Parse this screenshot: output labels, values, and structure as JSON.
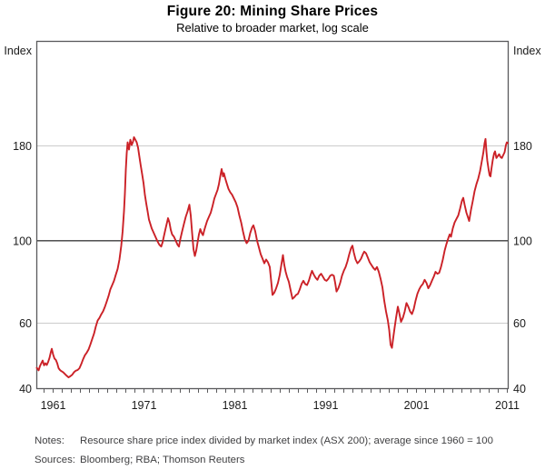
{
  "figure": {
    "title": "Figure 20: Mining Share Prices",
    "subtitle": "Relative to broader market, log scale"
  },
  "footer": {
    "notes_label": "Notes:",
    "notes_text": "Resource share price index divided by market index (ASX 200); average since 1960 = 100",
    "sources_label": "Sources:",
    "sources_text": "Bloomberg; RBA; Thomson Reuters"
  },
  "chart_data": {
    "type": "line",
    "title": "Figure 20: Mining Share Prices",
    "subtitle": "Relative to broader market, log scale",
    "y_unit": "Index",
    "yscale": "log",
    "ylim": [
      40,
      344
    ],
    "yticks": [
      180,
      100,
      60,
      40
    ],
    "baseline_value": 100,
    "xlim": [
      1959.2,
      2011.1
    ],
    "xticks_labeled": [
      "1961",
      "1971",
      "1981",
      "1991",
      "2001",
      "2011"
    ],
    "xtick_minor_start": 1960,
    "xtick_minor_end": 2011,
    "xtick_minor_step_years": 1,
    "grid": "horizontal",
    "legend": "none",
    "colors": {
      "line": "#cb2127",
      "grid": "#cccccc",
      "frame": "#5a5a5c",
      "baseline": "#3c3c3e",
      "tick_text": "#1a1a1a"
    },
    "series": [
      {
        "name": "Resource share prices relative to broader market (average since 1960 = 100)",
        "color": "#cb2127",
        "points": [
          [
            1959.2,
            45.5
          ],
          [
            1959.4,
            44.8
          ],
          [
            1959.55,
            46
          ],
          [
            1959.7,
            46.8
          ],
          [
            1959.85,
            47.6
          ],
          [
            1960,
            46.2
          ],
          [
            1960.15,
            46.8
          ],
          [
            1960.3,
            46.3
          ],
          [
            1960.45,
            47.2
          ],
          [
            1960.6,
            48.4
          ],
          [
            1960.75,
            50.2
          ],
          [
            1960.85,
            51.2
          ],
          [
            1961,
            49.4
          ],
          [
            1961.15,
            48.2
          ],
          [
            1961.3,
            47.8
          ],
          [
            1961.45,
            46.8
          ],
          [
            1961.6,
            45.4
          ],
          [
            1961.75,
            44.9
          ],
          [
            1961.9,
            44.6
          ],
          [
            1962.1,
            44.3
          ],
          [
            1962.3,
            43.8
          ],
          [
            1962.5,
            43.3
          ],
          [
            1962.7,
            42.9
          ],
          [
            1962.9,
            43.2
          ],
          [
            1963.1,
            43.6
          ],
          [
            1963.3,
            44.3
          ],
          [
            1963.5,
            44.7
          ],
          [
            1963.7,
            44.9
          ],
          [
            1963.9,
            45.4
          ],
          [
            1964.1,
            46.6
          ],
          [
            1964.3,
            48
          ],
          [
            1964.5,
            49.2
          ],
          [
            1964.7,
            50
          ],
          [
            1964.9,
            51
          ],
          [
            1965.1,
            52.6
          ],
          [
            1965.3,
            54.4
          ],
          [
            1965.5,
            56.2
          ],
          [
            1965.7,
            58.8
          ],
          [
            1965.9,
            61
          ],
          [
            1966.1,
            62
          ],
          [
            1966.3,
            63.4
          ],
          [
            1966.5,
            64.6
          ],
          [
            1966.7,
            66.4
          ],
          [
            1966.9,
            68.6
          ],
          [
            1967.1,
            71
          ],
          [
            1967.3,
            74
          ],
          [
            1967.5,
            76
          ],
          [
            1967.7,
            78
          ],
          [
            1967.9,
            81
          ],
          [
            1968.1,
            84
          ],
          [
            1968.3,
            89
          ],
          [
            1968.5,
            97
          ],
          [
            1968.65,
            106
          ],
          [
            1968.8,
            120
          ],
          [
            1968.9,
            134
          ],
          [
            1969,
            155
          ],
          [
            1969.1,
            172
          ],
          [
            1969.2,
            184
          ],
          [
            1969.35,
            176
          ],
          [
            1969.5,
            187
          ],
          [
            1969.65,
            181
          ],
          [
            1969.8,
            185
          ],
          [
            1969.9,
            190
          ],
          [
            1970.05,
            187
          ],
          [
            1970.2,
            184
          ],
          [
            1970.35,
            178
          ],
          [
            1970.5,
            168
          ],
          [
            1970.65,
            159
          ],
          [
            1970.8,
            151
          ],
          [
            1970.95,
            143
          ],
          [
            1971.1,
            133
          ],
          [
            1971.25,
            126
          ],
          [
            1971.4,
            120
          ],
          [
            1971.55,
            114
          ],
          [
            1971.7,
            111
          ],
          [
            1971.85,
            108
          ],
          [
            1972,
            106
          ],
          [
            1972.15,
            104
          ],
          [
            1972.3,
            102
          ],
          [
            1972.5,
            99.5
          ],
          [
            1972.7,
            97.5
          ],
          [
            1972.9,
            96.5
          ],
          [
            1973.05,
            99
          ],
          [
            1973.2,
            103
          ],
          [
            1973.35,
            107
          ],
          [
            1973.5,
            111
          ],
          [
            1973.65,
            115
          ],
          [
            1973.8,
            112
          ],
          [
            1973.95,
            107
          ],
          [
            1974.1,
            104
          ],
          [
            1974.3,
            102.5
          ],
          [
            1974.5,
            100
          ],
          [
            1974.7,
            97.5
          ],
          [
            1974.85,
            96.5
          ],
          [
            1975,
            101
          ],
          [
            1975.2,
            106
          ],
          [
            1975.4,
            111
          ],
          [
            1975.6,
            116
          ],
          [
            1975.8,
            120
          ],
          [
            1976,
            125
          ],
          [
            1976.15,
            117
          ],
          [
            1976.3,
            105
          ],
          [
            1976.45,
            95
          ],
          [
            1976.6,
            91
          ],
          [
            1976.75,
            94
          ],
          [
            1976.9,
            99
          ],
          [
            1977.05,
            104
          ],
          [
            1977.2,
            107.5
          ],
          [
            1977.35,
            105
          ],
          [
            1977.5,
            103.5
          ],
          [
            1977.65,
            107
          ],
          [
            1977.8,
            110
          ],
          [
            1977.95,
            113
          ],
          [
            1978.15,
            116
          ],
          [
            1978.35,
            119
          ],
          [
            1978.55,
            124
          ],
          [
            1978.75,
            130
          ],
          [
            1978.95,
            134
          ],
          [
            1979.1,
            137
          ],
          [
            1979.25,
            142
          ],
          [
            1979.4,
            149
          ],
          [
            1979.55,
            156
          ],
          [
            1979.7,
            149
          ],
          [
            1979.8,
            152
          ],
          [
            1979.95,
            147
          ],
          [
            1980.1,
            143
          ],
          [
            1980.3,
            138
          ],
          [
            1980.5,
            135
          ],
          [
            1980.7,
            133
          ],
          [
            1980.9,
            130
          ],
          [
            1981.1,
            127
          ],
          [
            1981.3,
            123
          ],
          [
            1981.5,
            117
          ],
          [
            1981.7,
            112
          ],
          [
            1981.9,
            106
          ],
          [
            1982.1,
            101
          ],
          [
            1982.3,
            98.5
          ],
          [
            1982.5,
            100
          ],
          [
            1982.7,
            105
          ],
          [
            1982.9,
            108.5
          ],
          [
            1983.05,
            110
          ],
          [
            1983.25,
            106
          ],
          [
            1983.45,
            100
          ],
          [
            1983.65,
            96
          ],
          [
            1983.85,
            92
          ],
          [
            1984.05,
            89.5
          ],
          [
            1984.25,
            87
          ],
          [
            1984.45,
            89
          ],
          [
            1984.65,
            87.5
          ],
          [
            1984.85,
            85
          ],
          [
            1985,
            78
          ],
          [
            1985.15,
            71.5
          ],
          [
            1985.35,
            72.5
          ],
          [
            1985.55,
            74.5
          ],
          [
            1985.75,
            77
          ],
          [
            1985.95,
            81
          ],
          [
            1986.15,
            87
          ],
          [
            1986.3,
            91.5
          ],
          [
            1986.45,
            86
          ],
          [
            1986.6,
            82.5
          ],
          [
            1986.75,
            80
          ],
          [
            1986.95,
            77.5
          ],
          [
            1987.15,
            73.5
          ],
          [
            1987.35,
            69.8
          ],
          [
            1987.55,
            70.5
          ],
          [
            1987.75,
            71.5
          ],
          [
            1987.95,
            72
          ],
          [
            1988.15,
            74
          ],
          [
            1988.35,
            76.5
          ],
          [
            1988.55,
            78
          ],
          [
            1988.75,
            76.5
          ],
          [
            1988.95,
            76
          ],
          [
            1989.15,
            78
          ],
          [
            1989.35,
            81
          ],
          [
            1989.5,
            83
          ],
          [
            1989.7,
            81
          ],
          [
            1989.9,
            79.5
          ],
          [
            1990.1,
            78.5
          ],
          [
            1990.3,
            80.5
          ],
          [
            1990.5,
            81.5
          ],
          [
            1990.7,
            80
          ],
          [
            1990.9,
            78.5
          ],
          [
            1991.1,
            78
          ],
          [
            1991.3,
            79
          ],
          [
            1991.5,
            80.5
          ],
          [
            1991.7,
            81
          ],
          [
            1991.9,
            80.5
          ],
          [
            1992.05,
            77
          ],
          [
            1992.2,
            73
          ],
          [
            1992.4,
            74.5
          ],
          [
            1992.6,
            77
          ],
          [
            1992.8,
            80.5
          ],
          [
            1993,
            83
          ],
          [
            1993.2,
            85
          ],
          [
            1993.4,
            88
          ],
          [
            1993.6,
            92
          ],
          [
            1993.8,
            95.5
          ],
          [
            1993.95,
            97
          ],
          [
            1994.1,
            93
          ],
          [
            1994.3,
            89
          ],
          [
            1994.5,
            87
          ],
          [
            1994.7,
            88
          ],
          [
            1994.9,
            89.5
          ],
          [
            1995.1,
            92
          ],
          [
            1995.25,
            93.5
          ],
          [
            1995.45,
            92.5
          ],
          [
            1995.65,
            90
          ],
          [
            1995.85,
            87.5
          ],
          [
            1996.05,
            86
          ],
          [
            1996.25,
            84.5
          ],
          [
            1996.45,
            83.5
          ],
          [
            1996.65,
            85
          ],
          [
            1996.85,
            82.5
          ],
          [
            1997.05,
            79
          ],
          [
            1997.25,
            75
          ],
          [
            1997.45,
            69
          ],
          [
            1997.65,
            64.5
          ],
          [
            1997.85,
            61
          ],
          [
            1998,
            57.5
          ],
          [
            1998.15,
            52.5
          ],
          [
            1998.3,
            51.5
          ],
          [
            1998.45,
            55
          ],
          [
            1998.6,
            58.5
          ],
          [
            1998.75,
            62
          ],
          [
            1998.95,
            66.5
          ],
          [
            1999.1,
            64
          ],
          [
            1999.3,
            60.5
          ],
          [
            1999.5,
            62
          ],
          [
            1999.7,
            64.5
          ],
          [
            1999.9,
            68
          ],
          [
            2000.1,
            66.5
          ],
          [
            2000.3,
            64.5
          ],
          [
            2000.5,
            63.5
          ],
          [
            2000.7,
            65.5
          ],
          [
            2000.9,
            69
          ],
          [
            2001.1,
            72
          ],
          [
            2001.3,
            74
          ],
          [
            2001.5,
            75.5
          ],
          [
            2001.7,
            76.5
          ],
          [
            2001.9,
            78.5
          ],
          [
            2002.1,
            77
          ],
          [
            2002.3,
            74.5
          ],
          [
            2002.5,
            76
          ],
          [
            2002.7,
            78
          ],
          [
            2002.9,
            80
          ],
          [
            2003.1,
            82.5
          ],
          [
            2003.3,
            81.5
          ],
          [
            2003.5,
            82
          ],
          [
            2003.7,
            85
          ],
          [
            2003.9,
            89
          ],
          [
            2004.1,
            94
          ],
          [
            2004.3,
            98
          ],
          [
            2004.5,
            101.5
          ],
          [
            2004.65,
            104
          ],
          [
            2004.8,
            102.5
          ],
          [
            2005,
            108
          ],
          [
            2005.2,
            112
          ],
          [
            2005.4,
            114.5
          ],
          [
            2005.6,
            117
          ],
          [
            2005.8,
            122
          ],
          [
            2006,
            128
          ],
          [
            2006.15,
            130.5
          ],
          [
            2006.3,
            125
          ],
          [
            2006.5,
            119
          ],
          [
            2006.65,
            116
          ],
          [
            2006.8,
            113
          ],
          [
            2007,
            121
          ],
          [
            2007.2,
            128
          ],
          [
            2007.4,
            136
          ],
          [
            2007.6,
            142
          ],
          [
            2007.8,
            147
          ],
          [
            2008,
            154
          ],
          [
            2008.2,
            164
          ],
          [
            2008.35,
            172
          ],
          [
            2008.5,
            183
          ],
          [
            2008.6,
            188
          ],
          [
            2008.7,
            174
          ],
          [
            2008.8,
            164
          ],
          [
            2008.95,
            155
          ],
          [
            2009.05,
            150
          ],
          [
            2009.15,
            149
          ],
          [
            2009.25,
            156
          ],
          [
            2009.4,
            165
          ],
          [
            2009.55,
            172
          ],
          [
            2009.65,
            174
          ],
          [
            2009.8,
            167
          ],
          [
            2009.95,
            169
          ],
          [
            2010.1,
            171
          ],
          [
            2010.25,
            168
          ],
          [
            2010.4,
            167
          ],
          [
            2010.55,
            170
          ],
          [
            2010.7,
            173
          ],
          [
            2010.85,
            181
          ],
          [
            2010.95,
            184
          ],
          [
            2011.05,
            183
          ]
        ]
      }
    ]
  }
}
